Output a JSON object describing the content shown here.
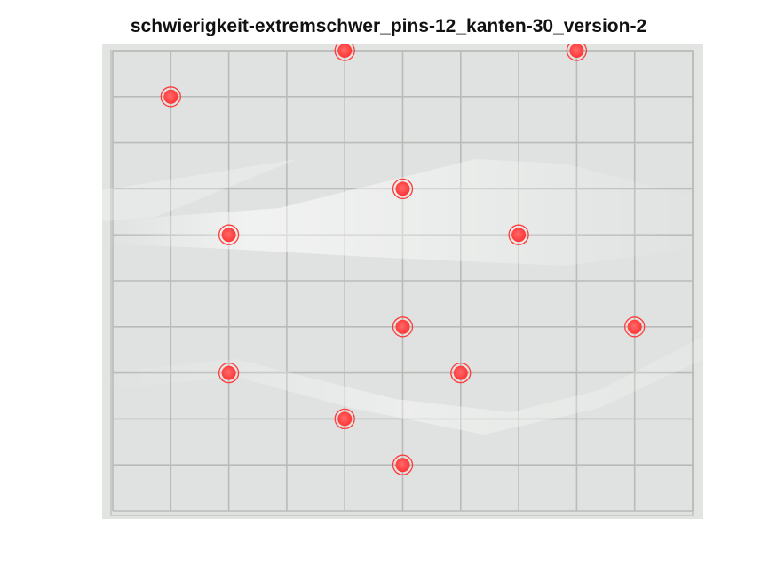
{
  "figure": {
    "title": "schwierigkeit-extremschwer_pins-12_kanten-30_version-2"
  },
  "board": {
    "grid_columns": 10,
    "grid_rows": 10,
    "background_color": "#e2e4e1",
    "grid_line_color": "#b9bbb9",
    "marker_color": "#ff3b3b",
    "pins": [
      {
        "col": 1,
        "row": 1
      },
      {
        "col": 4,
        "row": 0
      },
      {
        "col": 8,
        "row": 0
      },
      {
        "col": 5,
        "row": 3
      },
      {
        "col": 2,
        "row": 4
      },
      {
        "col": 7,
        "row": 4
      },
      {
        "col": 5,
        "row": 6
      },
      {
        "col": 9,
        "row": 6
      },
      {
        "col": 2,
        "row": 7
      },
      {
        "col": 6,
        "row": 7
      },
      {
        "col": 4,
        "row": 8
      },
      {
        "col": 5,
        "row": 9
      }
    ]
  }
}
